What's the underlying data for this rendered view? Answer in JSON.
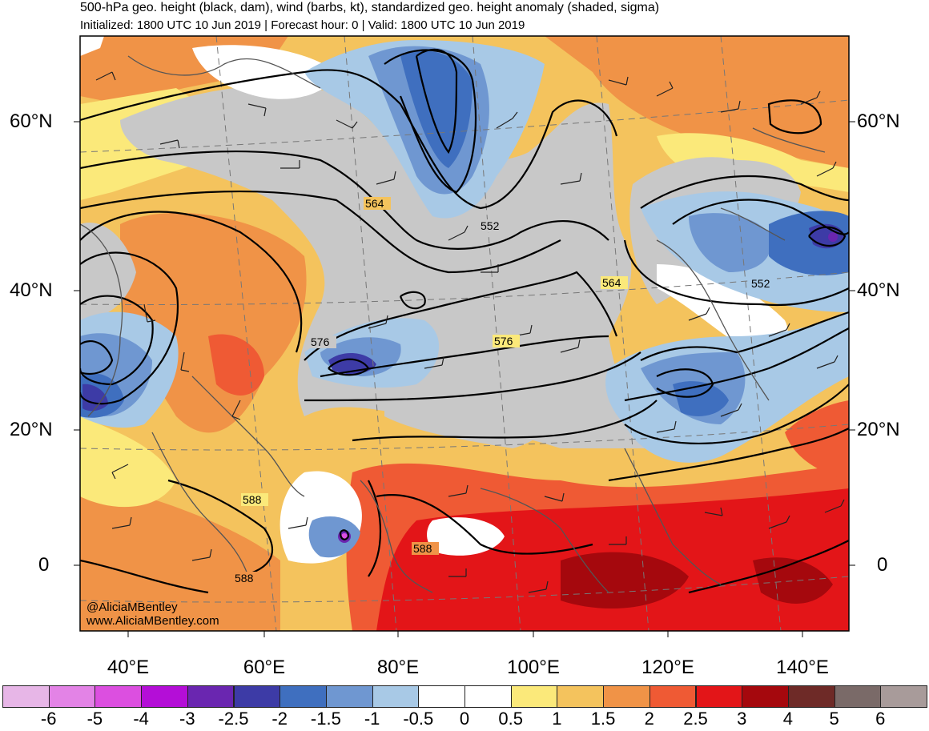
{
  "header": {
    "title": "500-hPa geo. height (black, dam), wind (barbs, kt), standardized geo. height anomaly (shaded, sigma)",
    "subtitle": "Initialized: 1800 UTC 10 Jun 2019 | Forecast hour: 0 | Valid: 1800 UTC 10 Jun 2019"
  },
  "axes": {
    "lat_labels_left": [
      "60°N",
      "40°N",
      "20°N",
      "0"
    ],
    "lat_labels_right": [
      "60°N",
      "40°N",
      "20°N",
      "0"
    ],
    "lon_labels": [
      "40°E",
      "60°E",
      "80°E",
      "100°E",
      "120°E",
      "140°E"
    ]
  },
  "contour_labels": [
    "564",
    "552",
    "564",
    "552",
    "576",
    "576",
    "588",
    "588",
    "588"
  ],
  "credits": {
    "handle": "@AliciaMBentley",
    "website": "www.AliciaMBentley.com"
  },
  "colorbar": {
    "labels": [
      "-6",
      "-5",
      "-4",
      "-3",
      "-2.5",
      "-2",
      "-1.5",
      "-1",
      "-0.5",
      "0",
      "0.5",
      "1",
      "1.5",
      "2",
      "2.5",
      "3",
      "4",
      "5",
      "6"
    ],
    "colors": [
      "#e7b6e7",
      "#e383e6",
      "#dc4fe0",
      "#b40ed7",
      "#6a26b0",
      "#3d3ba6",
      "#3f6fbf",
      "#6f97d1",
      "#a8c9e6",
      "#ffffff",
      "#ffffff",
      "#fbe97a",
      "#f4c35d",
      "#f09347",
      "#ef5a34",
      "#e31518",
      "#a5080d",
      "#6e2a27",
      "#7a6a68",
      "#a89b9a"
    ]
  },
  "anomaly_colors": {
    "land_gray": "#c8c8c8",
    "map_background": "#f4c35d"
  }
}
